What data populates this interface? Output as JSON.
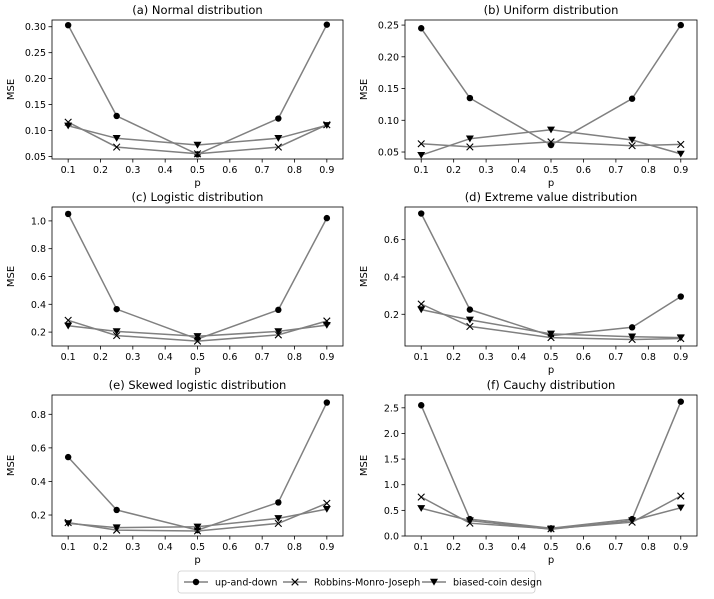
{
  "chart_data": [
    {
      "type": "line",
      "title": "(a) Normal distribution",
      "xlabel": "p",
      "ylabel": "MSE",
      "x": [
        0.1,
        0.25,
        0.5,
        0.75,
        0.9
      ],
      "xlim": [
        0.05,
        0.95
      ],
      "ylim": [
        0.045,
        0.313
      ],
      "xticks": [
        "0.1",
        "0.2",
        "0.3",
        "0.4",
        "0.5",
        "0.6",
        "0.7",
        "0.8",
        "0.9"
      ],
      "yticks": [
        "0.05",
        "0.10",
        "0.15",
        "0.20",
        "0.25",
        "0.30"
      ],
      "series": [
        {
          "name": "up-and-down",
          "values": [
            0.303,
            0.128,
            0.054,
            0.123,
            0.304
          ]
        },
        {
          "name": "Robbins-Monro-Joseph",
          "values": [
            0.116,
            0.068,
            0.055,
            0.068,
            0.111
          ]
        },
        {
          "name": "biased-coin design",
          "values": [
            0.109,
            0.085,
            0.072,
            0.085,
            0.11
          ]
        }
      ]
    },
    {
      "type": "line",
      "title": "(b) Uniform distribution",
      "xlabel": "p",
      "ylabel": "MSE",
      "x": [
        0.1,
        0.25,
        0.5,
        0.75,
        0.9
      ],
      "xlim": [
        0.05,
        0.95
      ],
      "ylim": [
        0.039,
        0.258
      ],
      "xticks": [
        "0.1",
        "0.2",
        "0.3",
        "0.4",
        "0.5",
        "0.6",
        "0.7",
        "0.8",
        "0.9"
      ],
      "yticks": [
        "0.05",
        "0.10",
        "0.15",
        "0.20",
        "0.25"
      ],
      "series": [
        {
          "name": "up-and-down",
          "values": [
            0.245,
            0.135,
            0.061,
            0.134,
            0.25
          ]
        },
        {
          "name": "Robbins-Monro-Joseph",
          "values": [
            0.063,
            0.058,
            0.066,
            0.06,
            0.062
          ]
        },
        {
          "name": "biased-coin design",
          "values": [
            0.045,
            0.071,
            0.085,
            0.069,
            0.047
          ]
        }
      ]
    },
    {
      "type": "line",
      "title": "(c) Logistic distribution",
      "xlabel": "p",
      "ylabel": "MSE",
      "x": [
        0.1,
        0.25,
        0.5,
        0.75,
        0.9
      ],
      "xlim": [
        0.05,
        0.95
      ],
      "ylim": [
        0.1,
        1.1
      ],
      "xticks": [
        "0.1",
        "0.2",
        "0.3",
        "0.4",
        "0.5",
        "0.6",
        "0.7",
        "0.8",
        "0.9"
      ],
      "yticks": [
        "0.2",
        "0.4",
        "0.6",
        "0.8",
        "1.0"
      ],
      "series": [
        {
          "name": "up-and-down",
          "values": [
            1.05,
            0.365,
            0.15,
            0.36,
            1.02
          ]
        },
        {
          "name": "Robbins-Monro-Joseph",
          "values": [
            0.285,
            0.175,
            0.135,
            0.18,
            0.28
          ]
        },
        {
          "name": "biased-coin design",
          "values": [
            0.245,
            0.205,
            0.17,
            0.205,
            0.25
          ]
        }
      ]
    },
    {
      "type": "line",
      "title": "(d) Extreme value distribution",
      "xlabel": "p",
      "ylabel": "MSE",
      "x": [
        0.1,
        0.25,
        0.5,
        0.75,
        0.9
      ],
      "xlim": [
        0.05,
        0.95
      ],
      "ylim": [
        0.03,
        0.775
      ],
      "xticks": [
        "0.1",
        "0.2",
        "0.3",
        "0.4",
        "0.5",
        "0.6",
        "0.7",
        "0.8",
        "0.9"
      ],
      "yticks": [
        "0.2",
        "0.4",
        "0.6"
      ],
      "series": [
        {
          "name": "up-and-down",
          "values": [
            0.74,
            0.225,
            0.085,
            0.13,
            0.295
          ]
        },
        {
          "name": "Robbins-Monro-Joseph",
          "values": [
            0.255,
            0.135,
            0.075,
            0.065,
            0.07
          ]
        },
        {
          "name": "biased-coin design",
          "values": [
            0.225,
            0.17,
            0.095,
            0.08,
            0.075
          ]
        }
      ]
    },
    {
      "type": "line",
      "title": "(e) Skewed logistic distribution",
      "xlabel": "p",
      "ylabel": "MSE",
      "x": [
        0.1,
        0.25,
        0.5,
        0.75,
        0.9
      ],
      "xlim": [
        0.05,
        0.95
      ],
      "ylim": [
        0.075,
        0.915
      ],
      "xticks": [
        "0.1",
        "0.2",
        "0.3",
        "0.4",
        "0.5",
        "0.6",
        "0.7",
        "0.8",
        "0.9"
      ],
      "yticks": [
        "0.2",
        "0.4",
        "0.6",
        "0.8"
      ],
      "series": [
        {
          "name": "up-and-down",
          "values": [
            0.545,
            0.23,
            0.11,
            0.275,
            0.87
          ]
        },
        {
          "name": "Robbins-Monro-Joseph",
          "values": [
            0.155,
            0.11,
            0.105,
            0.15,
            0.27
          ]
        },
        {
          "name": "biased-coin design",
          "values": [
            0.15,
            0.125,
            0.13,
            0.18,
            0.235
          ]
        }
      ]
    },
    {
      "type": "line",
      "title": "(f) Cauchy distribution",
      "xlabel": "p",
      "ylabel": "MSE",
      "x": [
        0.1,
        0.25,
        0.5,
        0.75,
        0.9
      ],
      "xlim": [
        0.05,
        0.95
      ],
      "ylim": [
        0.0,
        2.75
      ],
      "xticks": [
        "0.1",
        "0.2",
        "0.3",
        "0.4",
        "0.5",
        "0.6",
        "0.7",
        "0.8",
        "0.9"
      ],
      "yticks": [
        "0.0",
        "0.5",
        "1.0",
        "1.5",
        "2.0",
        "2.5"
      ],
      "series": [
        {
          "name": "up-and-down",
          "values": [
            2.55,
            0.33,
            0.15,
            0.33,
            2.62
          ]
        },
        {
          "name": "Robbins-Monro-Joseph",
          "values": [
            0.76,
            0.25,
            0.14,
            0.27,
            0.78
          ]
        },
        {
          "name": "biased-coin design",
          "values": [
            0.54,
            0.3,
            0.13,
            0.3,
            0.55
          ]
        }
      ]
    }
  ],
  "legend": {
    "items": [
      {
        "label": "up-and-down",
        "marker": "circle"
      },
      {
        "label": "Robbins-Monro-Joseph",
        "marker": "x"
      },
      {
        "label": "biased-coin design",
        "marker": "triangle-down"
      }
    ]
  },
  "colors": {
    "line": "#808080",
    "marker": "#000000",
    "axis": "#000000"
  }
}
